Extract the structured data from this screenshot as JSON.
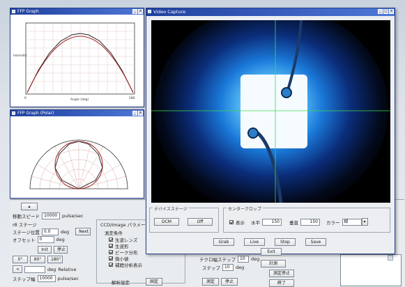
{
  "ffp_window": {
    "title": "FFP Graph",
    "ylabel": "Intensity",
    "xlabel": "Angle (deg)",
    "x_min": "0",
    "x_max": "180"
  },
  "ffp_polar_window": {
    "title": "FFP Graph (Polar)"
  },
  "main_window": {
    "title": "Video Capture",
    "device_group": "デバイスステージ",
    "device_buttons": [
      "DCM",
      "Off"
    ],
    "center_group": "センタークロップ",
    "center_check": "表示",
    "horizontal_label": "水平",
    "horizontal_value": "150",
    "vertical_label": "垂直",
    "vertical_value": "150",
    "color_label": "カラー",
    "color_value": "緑",
    "action_buttons": [
      "Grab",
      "Live",
      "Stop",
      "Save"
    ],
    "exit_button": "Exit"
  },
  "panel": {
    "speed_label": "移動スピード",
    "speed_value": "10000",
    "speed_unit": "pulse/sec",
    "stage_label": "rθ ステージ",
    "stage_pos_label": "ステージ位置",
    "stage_pos_value": "0.0",
    "stage_pos_unit": "deg",
    "next_button": "Next",
    "offset_label": "オフセット",
    "offset_value": "0",
    "offset_unit": "deg",
    "init_button": "Init",
    "stop_button": "停止",
    "angle_buttons": [
      "0°",
      "90°",
      "180°"
    ],
    "move_label": "deg",
    "move_hint": "Relative",
    "step_label": "ステップ幅",
    "step_value": "10000",
    "step_unit": "pulse/sec",
    "ccd_group": "CCD/Image パラメータ",
    "measure_group": "測定条件",
    "checks": [
      "生波レンズ",
      "生波形",
      "ピーク分布",
      "微小値",
      "補間分析表示"
    ],
    "analysis_label": "解析設定",
    "fix_button": "固定",
    "range_label": "テクロ幅ステップ",
    "range_value": "10",
    "range_unit": "deg",
    "step2_label": "ステップ",
    "step2_value": "10",
    "step2_unit": "deg",
    "measure_button": "測定",
    "stop2_button": "停止",
    "side_button1": "計測",
    "side_button2": "測定停止",
    "side_button3": "終了"
  }
}
